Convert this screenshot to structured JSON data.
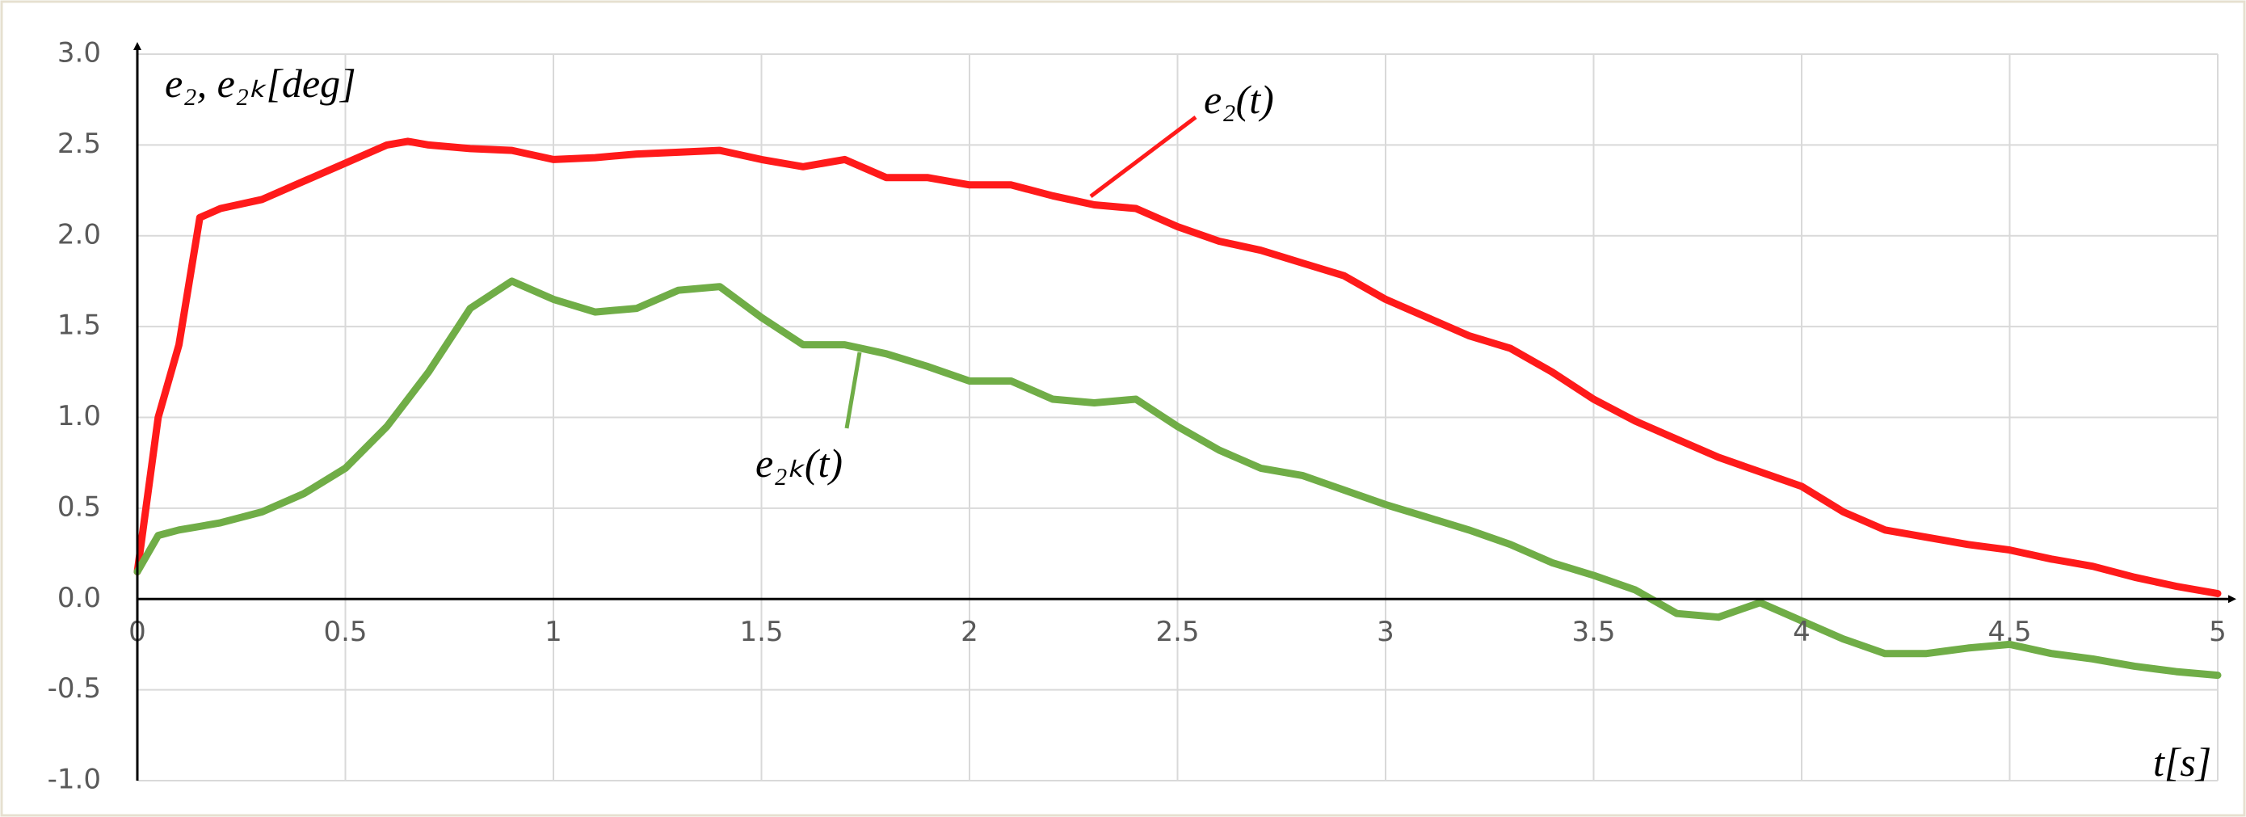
{
  "chart_data": {
    "type": "line",
    "y_label": "e₂, e₂ₖ[deg]",
    "x_label": "t[s]",
    "annotations": [
      "e₂(t)",
      "e₂ₖ(t)"
    ],
    "x": [
      0,
      0.05,
      0.1,
      0.15,
      0.2,
      0.3,
      0.4,
      0.5,
      0.6,
      0.65,
      0.7,
      0.8,
      0.9,
      1.0,
      1.1,
      1.2,
      1.3,
      1.4,
      1.5,
      1.6,
      1.7,
      1.8,
      1.9,
      2.0,
      2.1,
      2.2,
      2.3,
      2.4,
      2.5,
      2.6,
      2.7,
      2.8,
      2.9,
      3.0,
      3.1,
      3.2,
      3.3,
      3.4,
      3.5,
      3.6,
      3.7,
      3.8,
      3.9,
      4.0,
      4.1,
      4.2,
      4.3,
      4.4,
      4.5,
      4.6,
      4.7,
      4.8,
      4.9,
      5.0
    ],
    "series": [
      {
        "name": "e₂(t)",
        "color": "#ff1a1a",
        "values": [
          0.15,
          1.0,
          1.4,
          2.1,
          2.15,
          2.2,
          2.3,
          2.4,
          2.5,
          2.52,
          2.5,
          2.48,
          2.47,
          2.42,
          2.43,
          2.45,
          2.46,
          2.47,
          2.42,
          2.38,
          2.42,
          2.32,
          2.32,
          2.28,
          2.28,
          2.22,
          2.17,
          2.15,
          2.05,
          1.97,
          1.92,
          1.85,
          1.78,
          1.65,
          1.55,
          1.45,
          1.38,
          1.25,
          1.1,
          0.98,
          0.88,
          0.78,
          0.7,
          0.62,
          0.48,
          0.38,
          0.34,
          0.3,
          0.27,
          0.22,
          0.18,
          0.12,
          0.07,
          0.03
        ]
      },
      {
        "name": "e₂ₖ(t)",
        "color": "#70ad47",
        "values": [
          0.15,
          0.35,
          0.38,
          0.4,
          0.42,
          0.48,
          0.58,
          0.72,
          0.95,
          1.1,
          1.25,
          1.6,
          1.75,
          1.65,
          1.58,
          1.6,
          1.7,
          1.72,
          1.55,
          1.4,
          1.4,
          1.35,
          1.28,
          1.2,
          1.2,
          1.1,
          1.08,
          1.1,
          0.95,
          0.82,
          0.72,
          0.68,
          0.6,
          0.52,
          0.45,
          0.38,
          0.3,
          0.2,
          0.13,
          0.05,
          -0.08,
          -0.1,
          -0.02,
          -0.12,
          -0.22,
          -0.3,
          -0.3,
          -0.27,
          -0.25,
          -0.3,
          -0.33,
          -0.37,
          -0.4,
          -0.42
        ]
      }
    ],
    "xlim": [
      0,
      5
    ],
    "xticks": [
      0,
      0.5,
      1,
      1.5,
      2,
      2.5,
      3,
      3.5,
      4,
      4.5,
      5
    ],
    "ylim": [
      -1,
      3
    ],
    "yticks": [
      {
        "value": 3,
        "label": "3.0"
      },
      2.5,
      {
        "value": 2,
        "label": "2.0"
      },
      1.5,
      {
        "value": 1,
        "label": "1.0"
      },
      0.5,
      {
        "value": 0,
        "label": "0.0"
      },
      -0.5,
      {
        "value": -1,
        "label": "-1.0"
      }
    ],
    "grid": true
  }
}
